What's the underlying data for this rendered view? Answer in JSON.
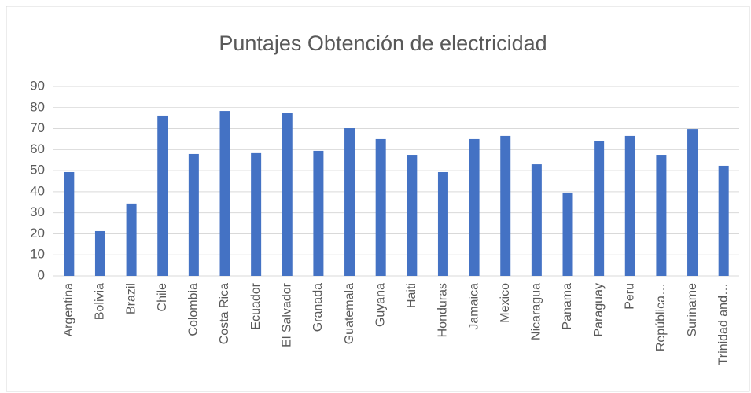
{
  "chart_data": {
    "type": "bar",
    "title": "Puntajes Obtención de electricidad",
    "categories": [
      "Argentina",
      "Bolivia",
      "Brazil",
      "Chile",
      "Colombia",
      "Costa Rica",
      "Ecuador",
      "El Salvador",
      "Granada",
      "Guatemala",
      "Guyana",
      "Haiti",
      "Honduras",
      "Jamaica",
      "Mexico",
      "Nicaragua",
      "Panama",
      "Paraguay",
      "Peru",
      "República…",
      "Suriname",
      "Trinidad and…"
    ],
    "values": [
      49.3,
      21.3,
      34.4,
      76.2,
      57.9,
      78.4,
      58.3,
      77.3,
      59.4,
      70.2,
      65,
      57.5,
      49.3,
      65,
      66.5,
      53,
      39.6,
      64.2,
      66.5,
      57.5,
      69.8,
      52.3
    ],
    "color": "#4472c4",
    "ylim": [
      0,
      90
    ],
    "yticks": [
      0,
      10,
      20,
      30,
      40,
      50,
      60,
      70,
      80,
      90
    ],
    "grid": true
  }
}
